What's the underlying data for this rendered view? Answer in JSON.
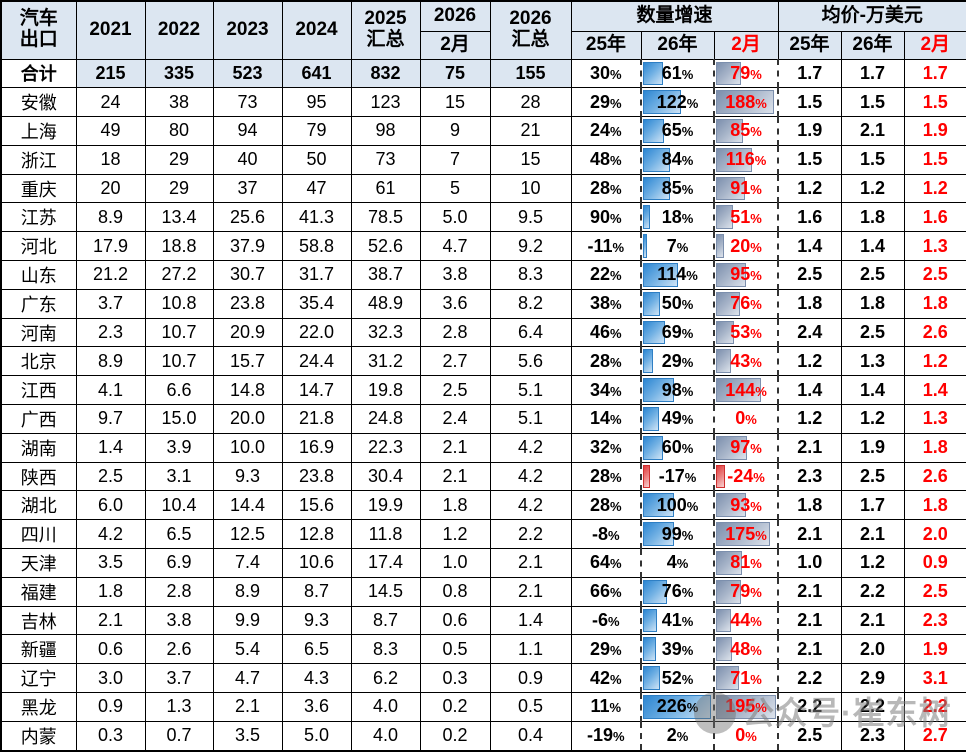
{
  "watermark": {
    "text": "公众号·崔东树",
    "logo": "circle-logo-icon"
  },
  "colors": {
    "header_bg": "#DCE6F1",
    "accent_red": "#FF0000",
    "bar_blue": "#2C86D2",
    "bar_slate": "#7C8FAD",
    "bar_negative": "#E03B3B",
    "grid": "#000000"
  },
  "chart_data": {
    "type": "table",
    "title": "汽车出口",
    "header": {
      "corner": [
        "汽车",
        "出口"
      ],
      "years": [
        "2021",
        "2022",
        "2023",
        "2024"
      ],
      "y2025_total": [
        "2025",
        "汇总"
      ],
      "y2026": "2026",
      "y2026_feb": "2月",
      "y2026_total": [
        "2026",
        "汇总"
      ],
      "growth_group": "数量增速",
      "price_group": "均价-万美元",
      "sub": [
        "25年",
        "26年",
        "2月"
      ]
    },
    "bar_max": {
      "g26": 226,
      "g2m": 195
    },
    "rows": [
      {
        "region": "合计",
        "total": true,
        "volumes": [
          "215",
          "335",
          "523",
          "641",
          "832",
          "75",
          "155"
        ],
        "growth": [
          "30%",
          "61%",
          "79%"
        ],
        "prices": [
          "1.7",
          "1.7",
          "1.7"
        ]
      },
      {
        "region": "安徽",
        "volumes": [
          "24",
          "38",
          "73",
          "95",
          "123",
          "15",
          "28"
        ],
        "growth": [
          "29%",
          "122%",
          "188%"
        ],
        "prices": [
          "1.5",
          "1.5",
          "1.5"
        ]
      },
      {
        "region": "上海",
        "volumes": [
          "49",
          "80",
          "94",
          "79",
          "98",
          "9",
          "21"
        ],
        "growth": [
          "24%",
          "65%",
          "85%"
        ],
        "prices": [
          "1.9",
          "2.1",
          "1.9"
        ]
      },
      {
        "region": "浙江",
        "volumes": [
          "18",
          "29",
          "40",
          "50",
          "73",
          "7",
          "15"
        ],
        "growth": [
          "48%",
          "84%",
          "116%"
        ],
        "prices": [
          "1.5",
          "1.5",
          "1.5"
        ]
      },
      {
        "region": "重庆",
        "volumes": [
          "20",
          "29",
          "37",
          "47",
          "61",
          "5",
          "10"
        ],
        "growth": [
          "28%",
          "85%",
          "91%"
        ],
        "prices": [
          "1.2",
          "1.2",
          "1.2"
        ]
      },
      {
        "region": "江苏",
        "volumes": [
          "8.9",
          "13.4",
          "25.6",
          "41.3",
          "78.5",
          "5.0",
          "9.5"
        ],
        "growth": [
          "90%",
          "18%",
          "51%"
        ],
        "prices": [
          "1.6",
          "1.8",
          "1.6"
        ]
      },
      {
        "region": "河北",
        "volumes": [
          "17.9",
          "18.8",
          "37.9",
          "58.8",
          "52.6",
          "4.7",
          "9.2"
        ],
        "growth": [
          "-11%",
          "7%",
          "20%"
        ],
        "prices": [
          "1.4",
          "1.4",
          "1.3"
        ]
      },
      {
        "region": "山东",
        "volumes": [
          "21.2",
          "27.2",
          "30.7",
          "31.7",
          "38.7",
          "3.8",
          "8.3"
        ],
        "growth": [
          "22%",
          "114%",
          "95%"
        ],
        "prices": [
          "2.5",
          "2.5",
          "2.5"
        ]
      },
      {
        "region": "广东",
        "volumes": [
          "3.7",
          "10.8",
          "23.8",
          "35.4",
          "48.9",
          "3.6",
          "8.2"
        ],
        "growth": [
          "38%",
          "50%",
          "76%"
        ],
        "prices": [
          "1.8",
          "1.8",
          "1.8"
        ]
      },
      {
        "region": "河南",
        "volumes": [
          "2.3",
          "10.7",
          "20.9",
          "22.0",
          "32.3",
          "2.8",
          "6.4"
        ],
        "growth": [
          "46%",
          "69%",
          "53%"
        ],
        "prices": [
          "2.4",
          "2.5",
          "2.6"
        ]
      },
      {
        "region": "北京",
        "volumes": [
          "8.9",
          "10.7",
          "15.7",
          "24.4",
          "31.2",
          "2.7",
          "5.6"
        ],
        "growth": [
          "28%",
          "29%",
          "43%"
        ],
        "prices": [
          "1.2",
          "1.3",
          "1.2"
        ]
      },
      {
        "region": "江西",
        "volumes": [
          "4.1",
          "6.6",
          "14.8",
          "14.7",
          "19.8",
          "2.5",
          "5.1"
        ],
        "growth": [
          "34%",
          "98%",
          "144%"
        ],
        "prices": [
          "1.4",
          "1.4",
          "1.4"
        ]
      },
      {
        "region": "广西",
        "volumes": [
          "9.7",
          "15.0",
          "20.0",
          "21.8",
          "24.8",
          "2.4",
          "5.1"
        ],
        "growth": [
          "14%",
          "49%",
          "0%"
        ],
        "prices": [
          "1.2",
          "1.2",
          "1.3"
        ]
      },
      {
        "region": "湖南",
        "volumes": [
          "1.4",
          "3.9",
          "10.0",
          "16.9",
          "22.3",
          "2.1",
          "4.2"
        ],
        "growth": [
          "32%",
          "60%",
          "97%"
        ],
        "prices": [
          "2.1",
          "1.9",
          "1.8"
        ]
      },
      {
        "region": "陕西",
        "volumes": [
          "2.5",
          "3.1",
          "9.3",
          "23.8",
          "30.4",
          "2.1",
          "4.2"
        ],
        "growth": [
          "28%",
          "-17%",
          "-24%"
        ],
        "prices": [
          "2.3",
          "2.5",
          "2.6"
        ]
      },
      {
        "region": "湖北",
        "volumes": [
          "6.0",
          "10.4",
          "14.4",
          "15.6",
          "19.9",
          "1.8",
          "4.2"
        ],
        "growth": [
          "28%",
          "100%",
          "93%"
        ],
        "prices": [
          "1.8",
          "1.7",
          "1.8"
        ]
      },
      {
        "region": "四川",
        "volumes": [
          "4.2",
          "6.5",
          "12.5",
          "12.8",
          "11.8",
          "1.2",
          "2.2"
        ],
        "growth": [
          "-8%",
          "99%",
          "175%"
        ],
        "prices": [
          "2.1",
          "2.1",
          "2.0"
        ]
      },
      {
        "region": "天津",
        "volumes": [
          "3.5",
          "6.9",
          "7.4",
          "10.6",
          "17.4",
          "1.0",
          "2.1"
        ],
        "growth": [
          "64%",
          "4%",
          "81%"
        ],
        "prices": [
          "1.0",
          "1.2",
          "0.9"
        ]
      },
      {
        "region": "福建",
        "volumes": [
          "1.8",
          "2.8",
          "8.9",
          "8.7",
          "14.5",
          "0.8",
          "2.1"
        ],
        "growth": [
          "66%",
          "76%",
          "79%"
        ],
        "prices": [
          "2.1",
          "2.2",
          "2.5"
        ]
      },
      {
        "region": "吉林",
        "volumes": [
          "2.1",
          "3.8",
          "9.9",
          "9.3",
          "8.7",
          "0.6",
          "1.4"
        ],
        "growth": [
          "-6%",
          "41%",
          "44%"
        ],
        "prices": [
          "2.1",
          "2.1",
          "2.3"
        ]
      },
      {
        "region": "新疆",
        "volumes": [
          "0.6",
          "2.6",
          "5.4",
          "6.5",
          "8.3",
          "0.5",
          "1.1"
        ],
        "growth": [
          "29%",
          "39%",
          "48%"
        ],
        "prices": [
          "2.1",
          "2.0",
          "1.9"
        ]
      },
      {
        "region": "辽宁",
        "volumes": [
          "3.0",
          "3.7",
          "4.7",
          "4.3",
          "6.2",
          "0.3",
          "0.9"
        ],
        "growth": [
          "42%",
          "52%",
          "71%"
        ],
        "prices": [
          "2.2",
          "2.9",
          "3.1"
        ]
      },
      {
        "region": "黑龙",
        "volumes": [
          "0.9",
          "1.3",
          "2.1",
          "3.6",
          "4.0",
          "0.2",
          "0.5"
        ],
        "growth": [
          "11%",
          "226%",
          "195%"
        ],
        "prices": [
          "2.2",
          "2.2",
          "2.2"
        ]
      },
      {
        "region": "内蒙",
        "volumes": [
          "0.3",
          "0.7",
          "3.5",
          "5.0",
          "4.0",
          "0.2",
          "0.4"
        ],
        "growth": [
          "-19%",
          "2%",
          "0%"
        ],
        "prices": [
          "2.5",
          "2.3",
          "2.7"
        ]
      }
    ]
  }
}
